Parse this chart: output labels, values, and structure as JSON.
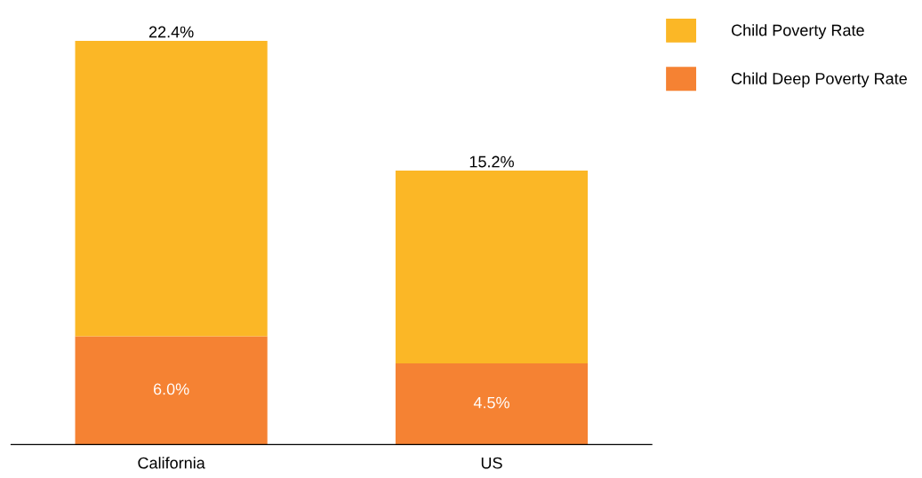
{
  "chart_data": {
    "type": "bar",
    "stacked": true,
    "categories": [
      "California",
      "US"
    ],
    "series": [
      {
        "name": "Child Deep Poverty Rate",
        "color": "#f58233",
        "values": [
          6.0,
          4.5
        ],
        "value_labels": [
          "6.0%",
          "4.5%"
        ]
      },
      {
        "name": "Child Poverty Rate",
        "color": "#fbb726",
        "values": [
          16.4,
          10.7
        ],
        "value_labels": [
          null,
          null
        ]
      }
    ],
    "totals": [
      "22.4%",
      "15.2%"
    ],
    "legend": "top right",
    "grid": false
  }
}
